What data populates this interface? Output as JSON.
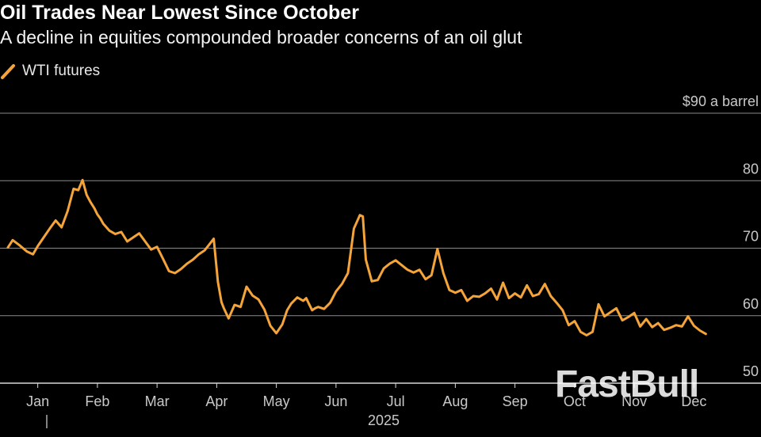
{
  "title": "Oil Trades Near Lowest Since October",
  "subtitle": "A decline in equities compounded broader concerns of an oil glut",
  "watermark": "FastBull",
  "colors": {
    "line": "#f5a43a",
    "grid": "#8a8a8a",
    "axis": "#d8d8d8",
    "tick": "#c9c9c9"
  },
  "chart_data": {
    "type": "line",
    "title": "Oil Trades Near Lowest Since October",
    "subtitle": "A decline in equities compounded broader concerns of an oil glut",
    "legend": {
      "position": "top-left",
      "entries": [
        "WTI futures"
      ]
    },
    "xlabel": "2025",
    "ylabel": "",
    "x_tick_labels": [
      "Jan",
      "Feb",
      "Mar",
      "Apr",
      "May",
      "Jun",
      "Jul",
      "Aug",
      "Sep",
      "Oct",
      "Nov",
      "Dec"
    ],
    "y_ticks": [
      50,
      60,
      70,
      80,
      90
    ],
    "y_tick_labels": [
      "50",
      "60",
      "70",
      "80",
      "$90 a barrel"
    ],
    "ylim": [
      50,
      90
    ],
    "xlim": [
      0,
      12
    ],
    "grid": true,
    "series": [
      {
        "name": "WTI futures",
        "x": [
          0.0,
          0.08,
          0.2,
          0.32,
          0.42,
          0.5,
          0.6,
          0.7,
          0.8,
          0.9,
          1.0,
          1.1,
          1.18,
          1.25,
          1.32,
          1.38,
          1.45,
          1.5,
          1.55,
          1.6,
          1.7,
          1.8,
          1.9,
          2.0,
          2.1,
          2.2,
          2.3,
          2.4,
          2.5,
          2.6,
          2.7,
          2.8,
          2.9,
          3.0,
          3.1,
          3.2,
          3.3,
          3.38,
          3.45,
          3.52,
          3.58,
          3.62,
          3.7,
          3.8,
          3.9,
          4.0,
          4.1,
          4.2,
          4.3,
          4.4,
          4.5,
          4.6,
          4.68,
          4.75,
          4.85,
          4.95,
          5.0,
          5.05,
          5.1,
          5.15,
          5.2,
          5.3,
          5.4,
          5.5,
          5.6,
          5.7,
          5.8,
          5.9,
          5.95,
          6.0,
          6.1,
          6.2,
          6.3,
          6.4,
          6.5,
          6.6,
          6.7,
          6.8,
          6.9,
          7.0,
          7.1,
          7.2,
          7.3,
          7.4,
          7.5,
          7.6,
          7.7,
          7.8,
          7.9,
          8.0,
          8.1,
          8.2,
          8.3,
          8.4,
          8.5,
          8.6,
          8.7,
          8.8,
          8.9,
          9.0,
          9.1,
          9.2,
          9.3,
          9.4,
          9.5,
          9.6,
          9.7,
          9.8,
          9.9,
          10.0,
          10.1,
          10.2,
          10.3,
          10.4,
          10.5,
          10.6,
          10.7,
          10.8,
          10.9,
          11.0,
          11.1,
          11.2,
          11.3,
          11.4,
          11.5,
          11.6,
          11.7
        ],
        "values": [
          70.1,
          71.2,
          70.4,
          69.5,
          69.1,
          70.3,
          71.6,
          72.9,
          74.1,
          73.1,
          75.5,
          78.8,
          78.6,
          80.1,
          77.9,
          76.9,
          75.9,
          75.0,
          74.4,
          73.6,
          72.6,
          72.1,
          72.4,
          71.0,
          71.6,
          72.2,
          71.0,
          69.8,
          70.2,
          68.4,
          66.6,
          66.3,
          66.9,
          67.7,
          68.3,
          69.1,
          69.7,
          70.6,
          71.4,
          65.0,
          62.0,
          61.1,
          59.6,
          61.6,
          61.3,
          64.3,
          63.0,
          62.4,
          60.9,
          58.5,
          57.4,
          58.7,
          60.8,
          61.8,
          62.7,
          62.2,
          62.6,
          61.7,
          60.8,
          61.1,
          61.3,
          61.0,
          61.9,
          63.6,
          64.7,
          66.3,
          72.9,
          74.9,
          74.7,
          68.3,
          65.1,
          65.3,
          67.0,
          67.7,
          68.2,
          67.5,
          66.8,
          66.4,
          66.8,
          65.4,
          66.0,
          69.9,
          66.3,
          63.8,
          63.4,
          63.8,
          62.2,
          62.9,
          62.8,
          63.3,
          64.0,
          62.4,
          64.9,
          62.6,
          63.3,
          62.7,
          64.5,
          62.9,
          63.2,
          64.7,
          62.9,
          61.9,
          60.8,
          58.6,
          59.2,
          57.6,
          57.1,
          57.6,
          61.7,
          59.9,
          60.5,
          61.1,
          59.3,
          59.8,
          60.4,
          58.4,
          59.5,
          58.3,
          58.9,
          57.9,
          58.2,
          58.6,
          58.4,
          59.9,
          58.5,
          57.8,
          57.3
        ]
      }
    ]
  }
}
